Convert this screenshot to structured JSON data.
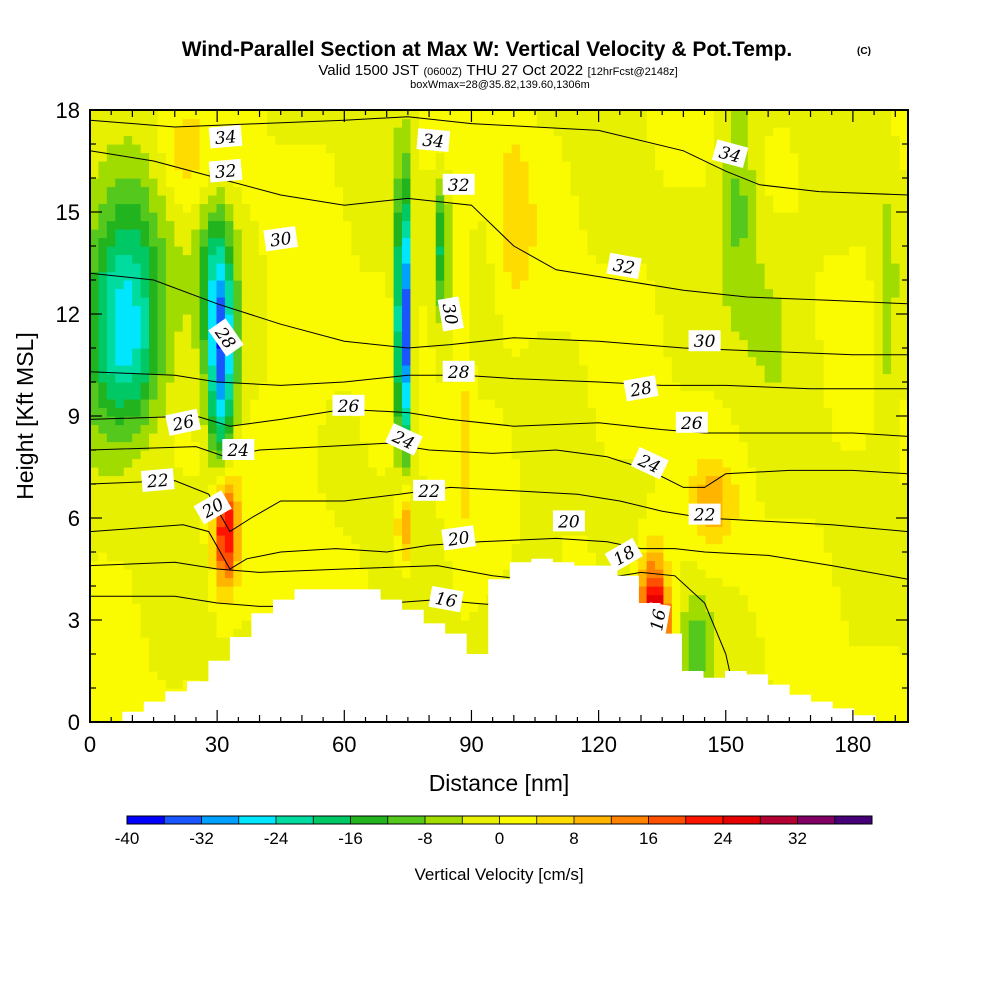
{
  "title": {
    "main": "Wind-Parallel Section at Max W: Vertical Velocity & Pot.Temp.",
    "copyright": "(C)",
    "valid_prefix": "Valid 1500 JST",
    "zulu": "(0600Z)",
    "valid_date": "THU 27 Oct 2022",
    "forecast": "[12hrFcst@2148z]",
    "box_info": "boxWmax=28@35.82,139.60,1306m"
  },
  "chart_data": {
    "type": "heatmap",
    "xlabel": "Distance [nm]",
    "ylabel": "Height [Kft MSL]",
    "xlim": [
      0,
      193
    ],
    "ylim": [
      0,
      18
    ],
    "x_ticks": [
      0,
      30,
      60,
      90,
      120,
      150,
      180
    ],
    "y_ticks": [
      0,
      3,
      6,
      9,
      12,
      15,
      18
    ],
    "colorbar": {
      "label": "Vertical Velocity [cm/s]",
      "tick_values": [
        -40,
        -32,
        -24,
        -16,
        -8,
        0,
        8,
        16,
        24,
        32
      ],
      "levels_min": -40,
      "levels_step": 4,
      "colors": [
        "#0000ff",
        "#1a56ff",
        "#00a0ff",
        "#00e6ff",
        "#00dca0",
        "#00c864",
        "#22b41e",
        "#55c81e",
        "#a0dc00",
        "#e6f000",
        "#fafa00",
        "#ffdc00",
        "#ffb400",
        "#ff8200",
        "#ff5000",
        "#ff1400",
        "#e60000",
        "#b40032",
        "#820064",
        "#460078"
      ]
    },
    "velocity_features": [
      {
        "x": 8,
        "y": 12.5,
        "sx": 7,
        "sy": 2.3,
        "w": -22
      },
      {
        "x": 9,
        "y": 10.5,
        "sx": 6,
        "sy": 1.5,
        "w": -10
      },
      {
        "x": 31,
        "y": 10.5,
        "sx": 2.2,
        "sy": 2.2,
        "w": -30
      },
      {
        "x": 29,
        "y": 13.2,
        "sx": 3.2,
        "sy": 1.8,
        "w": -13
      },
      {
        "x": 74,
        "y": 10.9,
        "sx": 1.2,
        "sy": 2.4,
        "w": -32
      },
      {
        "x": 74,
        "y": 13.5,
        "sx": 1.3,
        "sy": 2.5,
        "w": -14
      },
      {
        "x": 83,
        "y": 14.0,
        "sx": 1.2,
        "sy": 1.3,
        "w": -16
      },
      {
        "x": 32,
        "y": 5.7,
        "sx": 2.0,
        "sy": 1.2,
        "w": 26
      },
      {
        "x": 74,
        "y": 5.9,
        "sx": 1.1,
        "sy": 0.9,
        "w": 17
      },
      {
        "x": 133,
        "y": 2.4,
        "sx": 2.5,
        "sy": 1.6,
        "w": 40
      },
      {
        "x": 147,
        "y": 6.5,
        "sx": 3.5,
        "sy": 0.8,
        "w": 9
      },
      {
        "x": 22,
        "y": 16.5,
        "sx": 5,
        "sy": 1.3,
        "w": 6
      },
      {
        "x": 100,
        "y": 15.0,
        "sx": 3,
        "sy": 2.0,
        "w": 6
      },
      {
        "x": 143,
        "y": 2.3,
        "sx": 3,
        "sy": 1.0,
        "w": -10
      },
      {
        "x": 153,
        "y": 15.5,
        "sx": 3,
        "sy": 2.0,
        "w": -9
      },
      {
        "x": 160,
        "y": 12.5,
        "sx": 6,
        "sy": 2.0,
        "w": -5
      },
      {
        "x": 188,
        "y": 12.0,
        "sx": 2,
        "sy": 3.0,
        "w": -6
      },
      {
        "x": 105,
        "y": 3.5,
        "sx": 4,
        "sy": 1.2,
        "w": -5
      },
      {
        "x": 88,
        "y": 11.0,
        "sx": 1.5,
        "sy": 4.0,
        "w": 5
      },
      {
        "x": 50,
        "y": 9.0,
        "sx": 6,
        "sy": 3.0,
        "w": 3
      }
    ],
    "terrain_heights_kft": [
      0,
      0,
      0.3,
      0.6,
      0.9,
      1.2,
      1.8,
      2.5,
      3.2,
      3.6,
      3.9,
      3.9,
      3.9,
      3.9,
      3.6,
      3.3,
      2.9,
      2.6,
      2.0,
      4.2,
      4.7,
      4.8,
      4.7,
      4.6,
      4.6,
      4.3,
      3.5,
      2.6,
      1.5,
      1.3,
      1.5,
      1.4,
      1.1,
      0.8,
      0.6,
      0.4,
      0.2,
      0,
      0
    ],
    "theta_contours": [
      {
        "value": 16,
        "points": [
          [
            0,
            3.7
          ],
          [
            20,
            3.7
          ],
          [
            30,
            3.5
          ],
          [
            40,
            3.4
          ],
          [
            60,
            3.4
          ],
          [
            82,
            3.6
          ],
          [
            90,
            3.5
          ],
          [
            110,
            3.3
          ],
          [
            122,
            3.2
          ],
          [
            128,
            3.0
          ],
          [
            131,
            2.0
          ],
          [
            133,
            0.2
          ]
        ]
      },
      {
        "value": 18,
        "points": [
          [
            0,
            4.6
          ],
          [
            20,
            4.7
          ],
          [
            30,
            4.5
          ],
          [
            40,
            4.4
          ],
          [
            60,
            4.5
          ],
          [
            82,
            4.6
          ],
          [
            95,
            4.3
          ],
          [
            110,
            4.1
          ],
          [
            120,
            4.2
          ],
          [
            130,
            4.4
          ],
          [
            138,
            4.3
          ],
          [
            145,
            3.5
          ],
          [
            150,
            2.0
          ],
          [
            153,
            0.3
          ]
        ]
      },
      {
        "value": 20,
        "points": [
          [
            0,
            5.6
          ],
          [
            22,
            5.8
          ],
          [
            28,
            5.6
          ],
          [
            33,
            4.5
          ],
          [
            37,
            4.8
          ],
          [
            45,
            5.0
          ],
          [
            58,
            5.1
          ],
          [
            70,
            5.0
          ],
          [
            80,
            5.2
          ],
          [
            92,
            5.3
          ],
          [
            110,
            5.4
          ],
          [
            122,
            5.3
          ],
          [
            130,
            5.1
          ],
          [
            138,
            5.1
          ],
          [
            145,
            5.0
          ],
          [
            160,
            4.9
          ],
          [
            175,
            4.6
          ],
          [
            193,
            4.2
          ]
        ]
      },
      {
        "value": 22,
        "points": [
          [
            0,
            7.0
          ],
          [
            20,
            7.1
          ],
          [
            28,
            6.7
          ],
          [
            33,
            5.6
          ],
          [
            38,
            6.0
          ],
          [
            45,
            6.5
          ],
          [
            60,
            6.5
          ],
          [
            73,
            6.7
          ],
          [
            85,
            6.9
          ],
          [
            100,
            6.8
          ],
          [
            115,
            6.7
          ],
          [
            125,
            6.5
          ],
          [
            135,
            6.2
          ],
          [
            145,
            6.0
          ],
          [
            160,
            5.9
          ],
          [
            175,
            5.8
          ],
          [
            193,
            5.6
          ]
        ]
      },
      {
        "value": 24,
        "points": [
          [
            0,
            8.0
          ],
          [
            25,
            8.1
          ],
          [
            32,
            7.8
          ],
          [
            40,
            8.0
          ],
          [
            55,
            8.1
          ],
          [
            70,
            8.2
          ],
          [
            80,
            8.0
          ],
          [
            95,
            7.9
          ],
          [
            110,
            8.0
          ],
          [
            122,
            7.8
          ],
          [
            132,
            7.4
          ],
          [
            140,
            6.9
          ],
          [
            145,
            6.9
          ],
          [
            150,
            7.3
          ],
          [
            165,
            7.4
          ],
          [
            180,
            7.4
          ],
          [
            193,
            7.3
          ]
        ]
      },
      {
        "value": 26,
        "points": [
          [
            0,
            8.9
          ],
          [
            25,
            9.0
          ],
          [
            33,
            8.7
          ],
          [
            45,
            8.9
          ],
          [
            60,
            9.2
          ],
          [
            75,
            9.1
          ],
          [
            85,
            8.9
          ],
          [
            100,
            8.7
          ],
          [
            120,
            8.8
          ],
          [
            135,
            8.6
          ],
          [
            145,
            8.5
          ],
          [
            160,
            8.5
          ],
          [
            180,
            8.5
          ],
          [
            193,
            8.4
          ]
        ]
      },
      {
        "value": 28,
        "points": [
          [
            0,
            10.3
          ],
          [
            20,
            10.2
          ],
          [
            30,
            10.0
          ],
          [
            45,
            9.9
          ],
          [
            60,
            10.0
          ],
          [
            75,
            10.2
          ],
          [
            88,
            10.2
          ],
          [
            100,
            10.1
          ],
          [
            120,
            10.0
          ],
          [
            135,
            9.9
          ],
          [
            150,
            9.9
          ],
          [
            170,
            9.8
          ],
          [
            193,
            9.8
          ]
        ]
      },
      {
        "value": 30,
        "points": [
          [
            0,
            13.2
          ],
          [
            15,
            13.0
          ],
          [
            30,
            12.3
          ],
          [
            45,
            11.7
          ],
          [
            60,
            11.2
          ],
          [
            75,
            11.0
          ],
          [
            85,
            11.1
          ],
          [
            100,
            11.3
          ],
          [
            120,
            11.2
          ],
          [
            140,
            11.0
          ],
          [
            160,
            10.9
          ],
          [
            180,
            10.8
          ],
          [
            193,
            10.8
          ]
        ]
      },
      {
        "value": 32,
        "points": [
          [
            0,
            16.8
          ],
          [
            15,
            16.5
          ],
          [
            30,
            16.0
          ],
          [
            45,
            15.5
          ],
          [
            60,
            15.2
          ],
          [
            75,
            15.4
          ],
          [
            90,
            15.2
          ],
          [
            100,
            14.0
          ],
          [
            110,
            13.3
          ],
          [
            125,
            13.0
          ],
          [
            140,
            12.7
          ],
          [
            155,
            12.5
          ],
          [
            175,
            12.4
          ],
          [
            193,
            12.3
          ]
        ]
      },
      {
        "value": 34,
        "points": [
          [
            0,
            17.7
          ],
          [
            20,
            17.5
          ],
          [
            40,
            17.6
          ],
          [
            60,
            17.7
          ],
          [
            75,
            17.8
          ],
          [
            90,
            17.6
          ],
          [
            105,
            17.5
          ],
          [
            120,
            17.4
          ],
          [
            140,
            16.8
          ],
          [
            150,
            16.2
          ],
          [
            158,
            15.8
          ],
          [
            172,
            15.6
          ],
          [
            193,
            15.5
          ]
        ]
      }
    ],
    "contour_labels": [
      {
        "text": "34",
        "x": 32,
        "y": 17.2,
        "rot": -5
      },
      {
        "text": "32",
        "x": 32,
        "y": 16.2,
        "rot": -5
      },
      {
        "text": "30",
        "x": 45,
        "y": 14.2,
        "rot": -8
      },
      {
        "text": "28",
        "x": 32,
        "y": 11.3,
        "rot": 55
      },
      {
        "text": "26",
        "x": 22,
        "y": 8.8,
        "rot": -12
      },
      {
        "text": "24",
        "x": 35,
        "y": 8.0,
        "rot": 0
      },
      {
        "text": "22",
        "x": 16,
        "y": 7.1,
        "rot": -5
      },
      {
        "text": "20",
        "x": 29,
        "y": 6.3,
        "rot": -30
      },
      {
        "text": "34",
        "x": 81,
        "y": 17.1,
        "rot": 5
      },
      {
        "text": "32",
        "x": 87,
        "y": 15.8,
        "rot": 0
      },
      {
        "text": "30",
        "x": 85,
        "y": 12.0,
        "rot": 80
      },
      {
        "text": "28",
        "x": 87,
        "y": 10.3,
        "rot": 0
      },
      {
        "text": "26",
        "x": 61,
        "y": 9.3,
        "rot": 0
      },
      {
        "text": "24",
        "x": 74,
        "y": 8.3,
        "rot": 25
      },
      {
        "text": "22",
        "x": 80,
        "y": 6.8,
        "rot": 0
      },
      {
        "text": "20",
        "x": 87,
        "y": 5.4,
        "rot": -8
      },
      {
        "text": "16",
        "x": 84,
        "y": 3.6,
        "rot": 10
      },
      {
        "text": "34",
        "x": 151,
        "y": 16.7,
        "rot": 15
      },
      {
        "text": "32",
        "x": 126,
        "y": 13.4,
        "rot": 10
      },
      {
        "text": "30",
        "x": 145,
        "y": 11.2,
        "rot": 0
      },
      {
        "text": "28",
        "x": 130,
        "y": 9.8,
        "rot": -10
      },
      {
        "text": "26",
        "x": 142,
        "y": 8.8,
        "rot": 0
      },
      {
        "text": "24",
        "x": 132,
        "y": 7.6,
        "rot": 25
      },
      {
        "text": "22",
        "x": 145,
        "y": 6.1,
        "rot": 0
      },
      {
        "text": "20",
        "x": 113,
        "y": 5.9,
        "rot": 0
      },
      {
        "text": "18",
        "x": 126,
        "y": 4.9,
        "rot": -30
      },
      {
        "text": "16",
        "x": 134,
        "y": 3.0,
        "rot": -80
      }
    ]
  }
}
